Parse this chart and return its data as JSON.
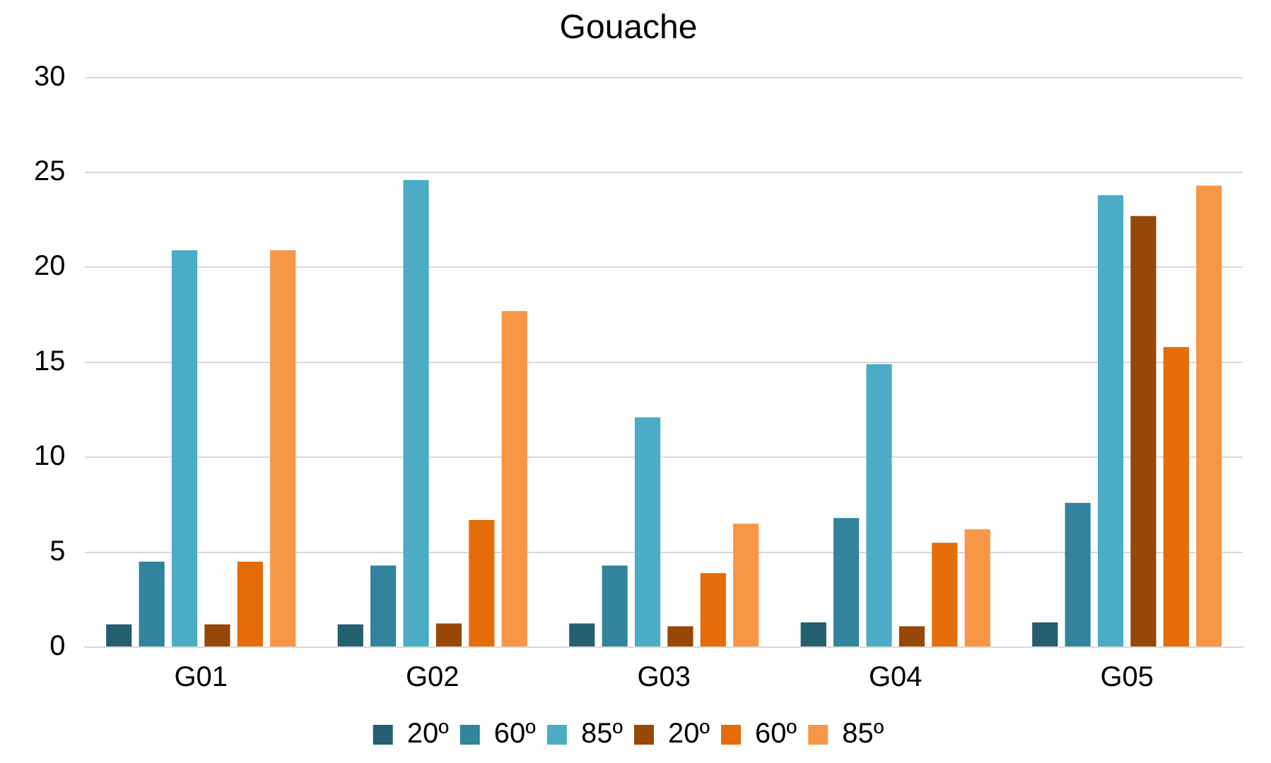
{
  "chart_data": {
    "type": "bar",
    "title": "Gouache",
    "categories": [
      "G01",
      "G02",
      "G03",
      "G04",
      "G05"
    ],
    "series": [
      {
        "name": "20º",
        "color": "#255e6e",
        "values": [
          1.2,
          1.2,
          1.25,
          1.3,
          1.3
        ]
      },
      {
        "name": "60º",
        "color": "#31849b",
        "values": [
          4.5,
          4.3,
          4.3,
          6.8,
          7.6
        ]
      },
      {
        "name": "85º",
        "color": "#4bacc6",
        "values": [
          20.9,
          24.6,
          12.1,
          14.9,
          23.8
        ]
      },
      {
        "name": "20º",
        "color": "#974706",
        "values": [
          1.2,
          1.25,
          1.1,
          1.1,
          22.7
        ]
      },
      {
        "name": "60º",
        "color": "#e46c0a",
        "values": [
          4.5,
          6.7,
          3.9,
          5.5,
          15.8
        ]
      },
      {
        "name": "85º",
        "color": "#f79646",
        "values": [
          20.9,
          17.7,
          6.5,
          6.2,
          24.3
        ]
      }
    ],
    "ylim": [
      0,
      30
    ],
    "yticks": [
      0,
      5,
      10,
      15,
      20,
      25,
      30
    ],
    "grid": "y",
    "legend": "bottom"
  }
}
